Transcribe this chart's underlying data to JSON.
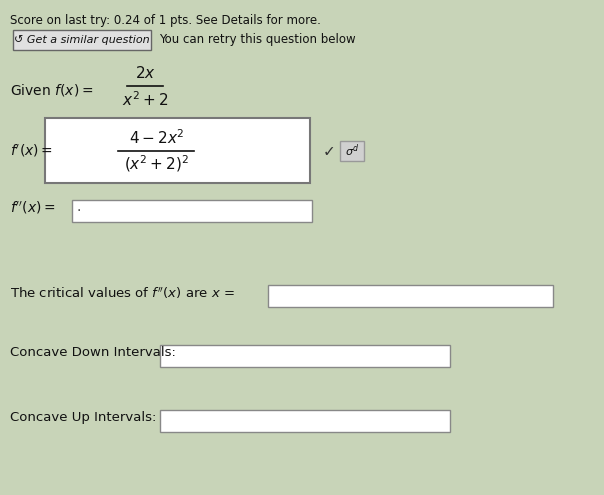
{
  "score_text": "Score on last try: 0.24 of 1 pts. See Details for more.",
  "button_text": "↺ Get a similar question",
  "retry_text": "You can retry this question below",
  "bg_color": "#c8d4b8",
  "box_color": "#ffffff",
  "text_color": "#111111",
  "button_bg": "#e0e0e0",
  "button_border": "#888888",
  "fig_w": 6.04,
  "fig_h": 4.95,
  "dpi": 100
}
